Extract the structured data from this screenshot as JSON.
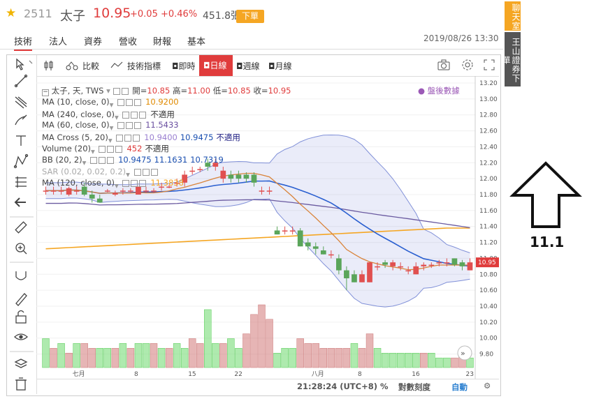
{
  "header": {
    "code": "2511",
    "name": "太子",
    "price": "10.95",
    "change": "+0.05",
    "change_pct": "+0.46%",
    "volume": "451.8張",
    "sell_button": "下單",
    "datetime": "2019/08/26 13:30"
  },
  "tabs": [
    "技術",
    "法人",
    "資券",
    "營收",
    "財報",
    "基本"
  ],
  "toolbar": {
    "compare": "比較",
    "indicators": "技術指標",
    "intervals": [
      "即時",
      "日線",
      "週線",
      "月線"
    ],
    "active_interval": "日線"
  },
  "side_buttons": [
    "聊天室",
    "王山證券下單"
  ],
  "legend": {
    "main": "太子, 天, TWS",
    "ohlc": [
      {
        "label": "開",
        "value": "10.85"
      },
      {
        "label": "高",
        "value": "11.00"
      },
      {
        "label": "低",
        "value": "10.85"
      },
      {
        "label": "收",
        "value": "10.95"
      }
    ],
    "after_hours": "盤後數據",
    "rows": [
      {
        "name": "MA (10, close, 0)",
        "values": [
          "10.9200"
        ],
        "colors": [
          "#e08a00"
        ]
      },
      {
        "name": "MA (240, close, 0)",
        "values": [
          "不適用"
        ],
        "colors": [
          "#333333"
        ]
      },
      {
        "name": "MA (60, close, 0)",
        "values": [
          "11.5433"
        ],
        "colors": [
          "#6a4fa0"
        ]
      },
      {
        "name": "MA Cross (5, 20)",
        "values": [
          "10.9400",
          "10.9475",
          "不適用"
        ],
        "colors": [
          "#9a7fd0",
          "#1a4fb0",
          "#1a1a80"
        ]
      },
      {
        "name": "Volume (20)",
        "values": [
          "452",
          "不適用"
        ],
        "colors": [
          "#e03c3c",
          "#333333"
        ]
      },
      {
        "name": "BB (20, 2)",
        "values": [
          "10.9475",
          "11.1631",
          "10.7319"
        ],
        "colors": [
          "#1a4fb0",
          "#1a4fb0",
          "#1a4fb0"
        ]
      },
      {
        "name": "SAR (0.02, 0.02, 0.2)",
        "values": [],
        "colors": []
      },
      {
        "name": "MA (120, close, 0)",
        "values": [
          "11.3838"
        ],
        "colors": [
          "#f5a623"
        ]
      }
    ]
  },
  "price_axis": [
    "13.20",
    "13.00",
    "12.80",
    "12.60",
    "12.40",
    "12.20",
    "12.00",
    "11.80",
    "11.60",
    "11.40",
    "11.20",
    "11.00",
    "10.80",
    "10.60",
    "10.40",
    "10.20",
    "10.00",
    "9.80"
  ],
  "last_price_tag": "10.95",
  "date_axis": [
    "七月",
    "8",
    "15",
    "22",
    "八月",
    "8",
    "16",
    "23"
  ],
  "bottom_bar": {
    "time": "21:28:24 (UTC+8)",
    "pct": "%",
    "log": "對數刻度",
    "auto": "自動"
  },
  "annotation": {
    "label": "11.1"
  },
  "colors": {
    "up": "#e05050",
    "down": "#5aa55a",
    "ma120": "#f5a623",
    "ma60": "#6a5aa0",
    "ma20": "#2a5fd0",
    "ma10": "#d9843a",
    "bb": "#8090d8"
  },
  "chart_data": {
    "type": "candlestick",
    "ylim": [
      9.7,
      13.2
    ],
    "candles": [
      {
        "o": 11.85,
        "h": 11.9,
        "l": 11.8,
        "c": 11.85
      },
      {
        "o": 11.85,
        "h": 11.9,
        "l": 11.8,
        "c": 11.85
      },
      {
        "o": 11.85,
        "h": 11.9,
        "l": 11.8,
        "c": 11.85
      },
      {
        "o": 11.8,
        "h": 11.9,
        "l": 11.78,
        "c": 11.88
      },
      {
        "o": 11.85,
        "h": 11.9,
        "l": 11.8,
        "c": 11.85
      },
      {
        "o": 11.9,
        "h": 11.95,
        "l": 11.78,
        "c": 11.8
      },
      {
        "o": 11.8,
        "h": 11.85,
        "l": 11.7,
        "c": 11.75
      },
      {
        "o": 11.75,
        "h": 11.8,
        "l": 11.7,
        "c": 11.7
      },
      {
        "o": 11.85,
        "h": 11.87,
        "l": 11.83,
        "c": 11.85
      },
      {
        "o": 11.8,
        "h": 11.85,
        "l": 11.78,
        "c": 11.82
      },
      {
        "o": 11.85,
        "h": 11.88,
        "l": 11.8,
        "c": 11.85
      },
      {
        "o": 11.85,
        "h": 11.88,
        "l": 11.82,
        "c": 11.85
      },
      {
        "o": 11.8,
        "h": 11.9,
        "l": 11.8,
        "c": 11.9
      },
      {
        "o": 11.85,
        "h": 11.9,
        "l": 11.82,
        "c": 11.85
      },
      {
        "o": 11.85,
        "h": 11.88,
        "l": 11.82,
        "c": 11.85
      },
      {
        "o": 11.9,
        "h": 11.95,
        "l": 11.85,
        "c": 11.9
      },
      {
        "o": 11.9,
        "h": 11.92,
        "l": 11.88,
        "c": 11.9
      },
      {
        "o": 11.95,
        "h": 12.0,
        "l": 11.9,
        "c": 11.95
      },
      {
        "o": 11.95,
        "h": 12.1,
        "l": 11.9,
        "c": 12.05
      },
      {
        "o": 12.1,
        "h": 12.15,
        "l": 12.05,
        "c": 12.1
      },
      {
        "o": 12.12,
        "h": 12.15,
        "l": 12.08,
        "c": 12.12
      },
      {
        "o": 12.2,
        "h": 12.25,
        "l": 12.1,
        "c": 12.15
      },
      {
        "o": 12.15,
        "h": 12.25,
        "l": 12.1,
        "c": 12.2
      },
      {
        "o": 12.0,
        "h": 12.15,
        "l": 11.95,
        "c": 12.1
      },
      {
        "o": 12.05,
        "h": 12.1,
        "l": 11.95,
        "c": 12.0
      },
      {
        "o": 12.05,
        "h": 12.1,
        "l": 11.95,
        "c": 12.0
      },
      {
        "o": 12.05,
        "h": 12.08,
        "l": 11.95,
        "c": 12.0
      },
      {
        "o": 12.05,
        "h": 12.08,
        "l": 11.9,
        "c": 11.95
      },
      {
        "o": 11.85,
        "h": 11.9,
        "l": 11.8,
        "c": 11.85
      },
      {
        "o": 11.85,
        "h": 11.9,
        "l": 11.8,
        "c": 11.85
      },
      {
        "o": 11.35,
        "h": 11.4,
        "l": 11.3,
        "c": 11.3
      },
      {
        "o": 11.35,
        "h": 11.4,
        "l": 11.3,
        "c": 11.35
      },
      {
        "o": 11.35,
        "h": 11.4,
        "l": 11.3,
        "c": 11.35
      },
      {
        "o": 11.35,
        "h": 11.38,
        "l": 11.15,
        "c": 11.15
      },
      {
        "o": 11.2,
        "h": 11.25,
        "l": 11.1,
        "c": 11.15
      },
      {
        "o": 11.15,
        "h": 11.2,
        "l": 11.05,
        "c": 11.12
      },
      {
        "o": 11.1,
        "h": 11.15,
        "l": 11.05,
        "c": 11.05
      },
      {
        "o": 11.05,
        "h": 11.1,
        "l": 11.0,
        "c": 11.05
      },
      {
        "o": 11.0,
        "h": 11.05,
        "l": 10.8,
        "c": 10.85
      },
      {
        "o": 10.85,
        "h": 10.9,
        "l": 10.6,
        "c": 10.75
      },
      {
        "o": 10.8,
        "h": 10.85,
        "l": 10.7,
        "c": 10.7
      },
      {
        "o": 10.7,
        "h": 10.85,
        "l": 10.7,
        "c": 10.8
      },
      {
        "o": 10.7,
        "h": 10.95,
        "l": 10.7,
        "c": 10.95
      },
      {
        "o": 10.9,
        "h": 10.95,
        "l": 10.85,
        "c": 10.9
      },
      {
        "o": 10.95,
        "h": 10.98,
        "l": 10.88,
        "c": 10.92
      },
      {
        "o": 10.9,
        "h": 10.98,
        "l": 10.85,
        "c": 10.95
      },
      {
        "o": 10.9,
        "h": 10.95,
        "l": 10.85,
        "c": 10.9
      },
      {
        "o": 10.85,
        "h": 10.9,
        "l": 10.8,
        "c": 10.85
      },
      {
        "o": 10.8,
        "h": 10.95,
        "l": 10.8,
        "c": 10.9
      },
      {
        "o": 10.9,
        "h": 10.95,
        "l": 10.85,
        "c": 10.92
      },
      {
        "o": 10.92,
        "h": 10.95,
        "l": 10.88,
        "c": 10.92
      },
      {
        "o": 10.95,
        "h": 10.98,
        "l": 10.9,
        "c": 10.95
      },
      {
        "o": 10.95,
        "h": 11.0,
        "l": 10.9,
        "c": 10.95
      },
      {
        "o": 11.0,
        "h": 11.0,
        "l": 10.9,
        "c": 10.92
      },
      {
        "o": 10.95,
        "h": 10.98,
        "l": 10.85,
        "c": 10.9
      },
      {
        "o": 10.85,
        "h": 11.0,
        "l": 10.85,
        "c": 10.95
      }
    ],
    "volumes": [
      0.6,
      0.4,
      0.5,
      0.3,
      0.5,
      0.5,
      0.4,
      0.4,
      0.4,
      0.4,
      0.5,
      0.4,
      0.5,
      0.5,
      0.5,
      0.4,
      0.4,
      0.5,
      0.4,
      0.6,
      0.5,
      1.2,
      0.5,
      0.5,
      0.6,
      0.4,
      0.7,
      1.1,
      1.3,
      1.0,
      0.3,
      0.4,
      0.4,
      0.6,
      0.5,
      0.5,
      0.4,
      0.4,
      0.4,
      0.4,
      0.5,
      0.4,
      0.7,
      0.4,
      0.3,
      0.3,
      0.3,
      0.3,
      0.3,
      0.3,
      0.3,
      0.2,
      0.2,
      0.2,
      0.3,
      0.2
    ],
    "volume_up": [
      true,
      false,
      true,
      false,
      true,
      false,
      false,
      true,
      true,
      false,
      true,
      false,
      true,
      true,
      false,
      true,
      false,
      true,
      true,
      false,
      false,
      true,
      true,
      false,
      true,
      true,
      false,
      false,
      false,
      false,
      true,
      true,
      true,
      false,
      false,
      false,
      false,
      false,
      false,
      false,
      true,
      false,
      false,
      true,
      true,
      true,
      true,
      true,
      true,
      false,
      true,
      true,
      true,
      false,
      false,
      true
    ]
  }
}
